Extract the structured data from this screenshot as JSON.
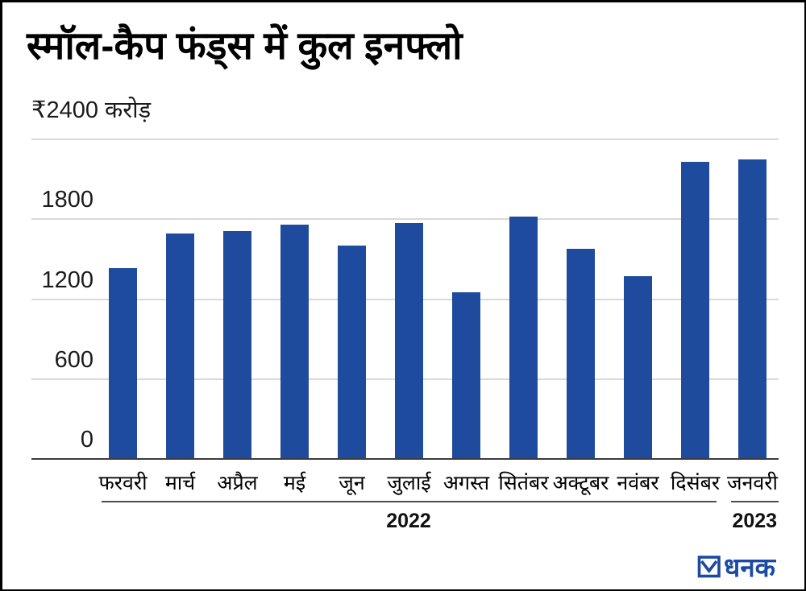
{
  "title": "स्मॉल-कैप फंड्स में कुल इनफ्लो",
  "unit_label": "₹2400 करोड़",
  "chart_data": {
    "type": "bar",
    "title": "स्मॉल-कैप फंड्स में कुल इनफ्लो",
    "ylabel": "₹ करोड़",
    "categories": [
      "फरवरी",
      "मार्च",
      "अप्रैल",
      "मई",
      "जून",
      "जुलाई",
      "अगस्त",
      "सितंबर",
      "अक्टूबर",
      "नवंबर",
      "दिसंबर",
      "जनवरी"
    ],
    "values": [
      1430,
      1690,
      1710,
      1760,
      1600,
      1770,
      1250,
      1820,
      1575,
      1370,
      2230,
      2250
    ],
    "ylim": [
      0,
      2400
    ],
    "gridline_values": [
      2400,
      1800,
      1200,
      600
    ],
    "ytick_labels": [
      {
        "value": 1800,
        "label": "1800"
      },
      {
        "value": 1200,
        "label": "1200"
      },
      {
        "value": 600,
        "label": "600"
      },
      {
        "value": 0,
        "label": "0"
      }
    ],
    "grid": true,
    "legend": null,
    "year_groups": [
      {
        "label": "2022",
        "from_index": 0,
        "to_index": 10
      },
      {
        "label": "2023",
        "from_index": 11,
        "to_index": 11
      }
    ],
    "colors": {
      "bar": "#1e4b9d",
      "grid": "#d9d9d9",
      "axis": "#3c3c3c",
      "year_line": "#4d4d4d"
    }
  },
  "footer": {
    "logo_text": "धनक",
    "logo_icon": "checkbox-check-icon",
    "logo_color": "#1b4aa2"
  }
}
